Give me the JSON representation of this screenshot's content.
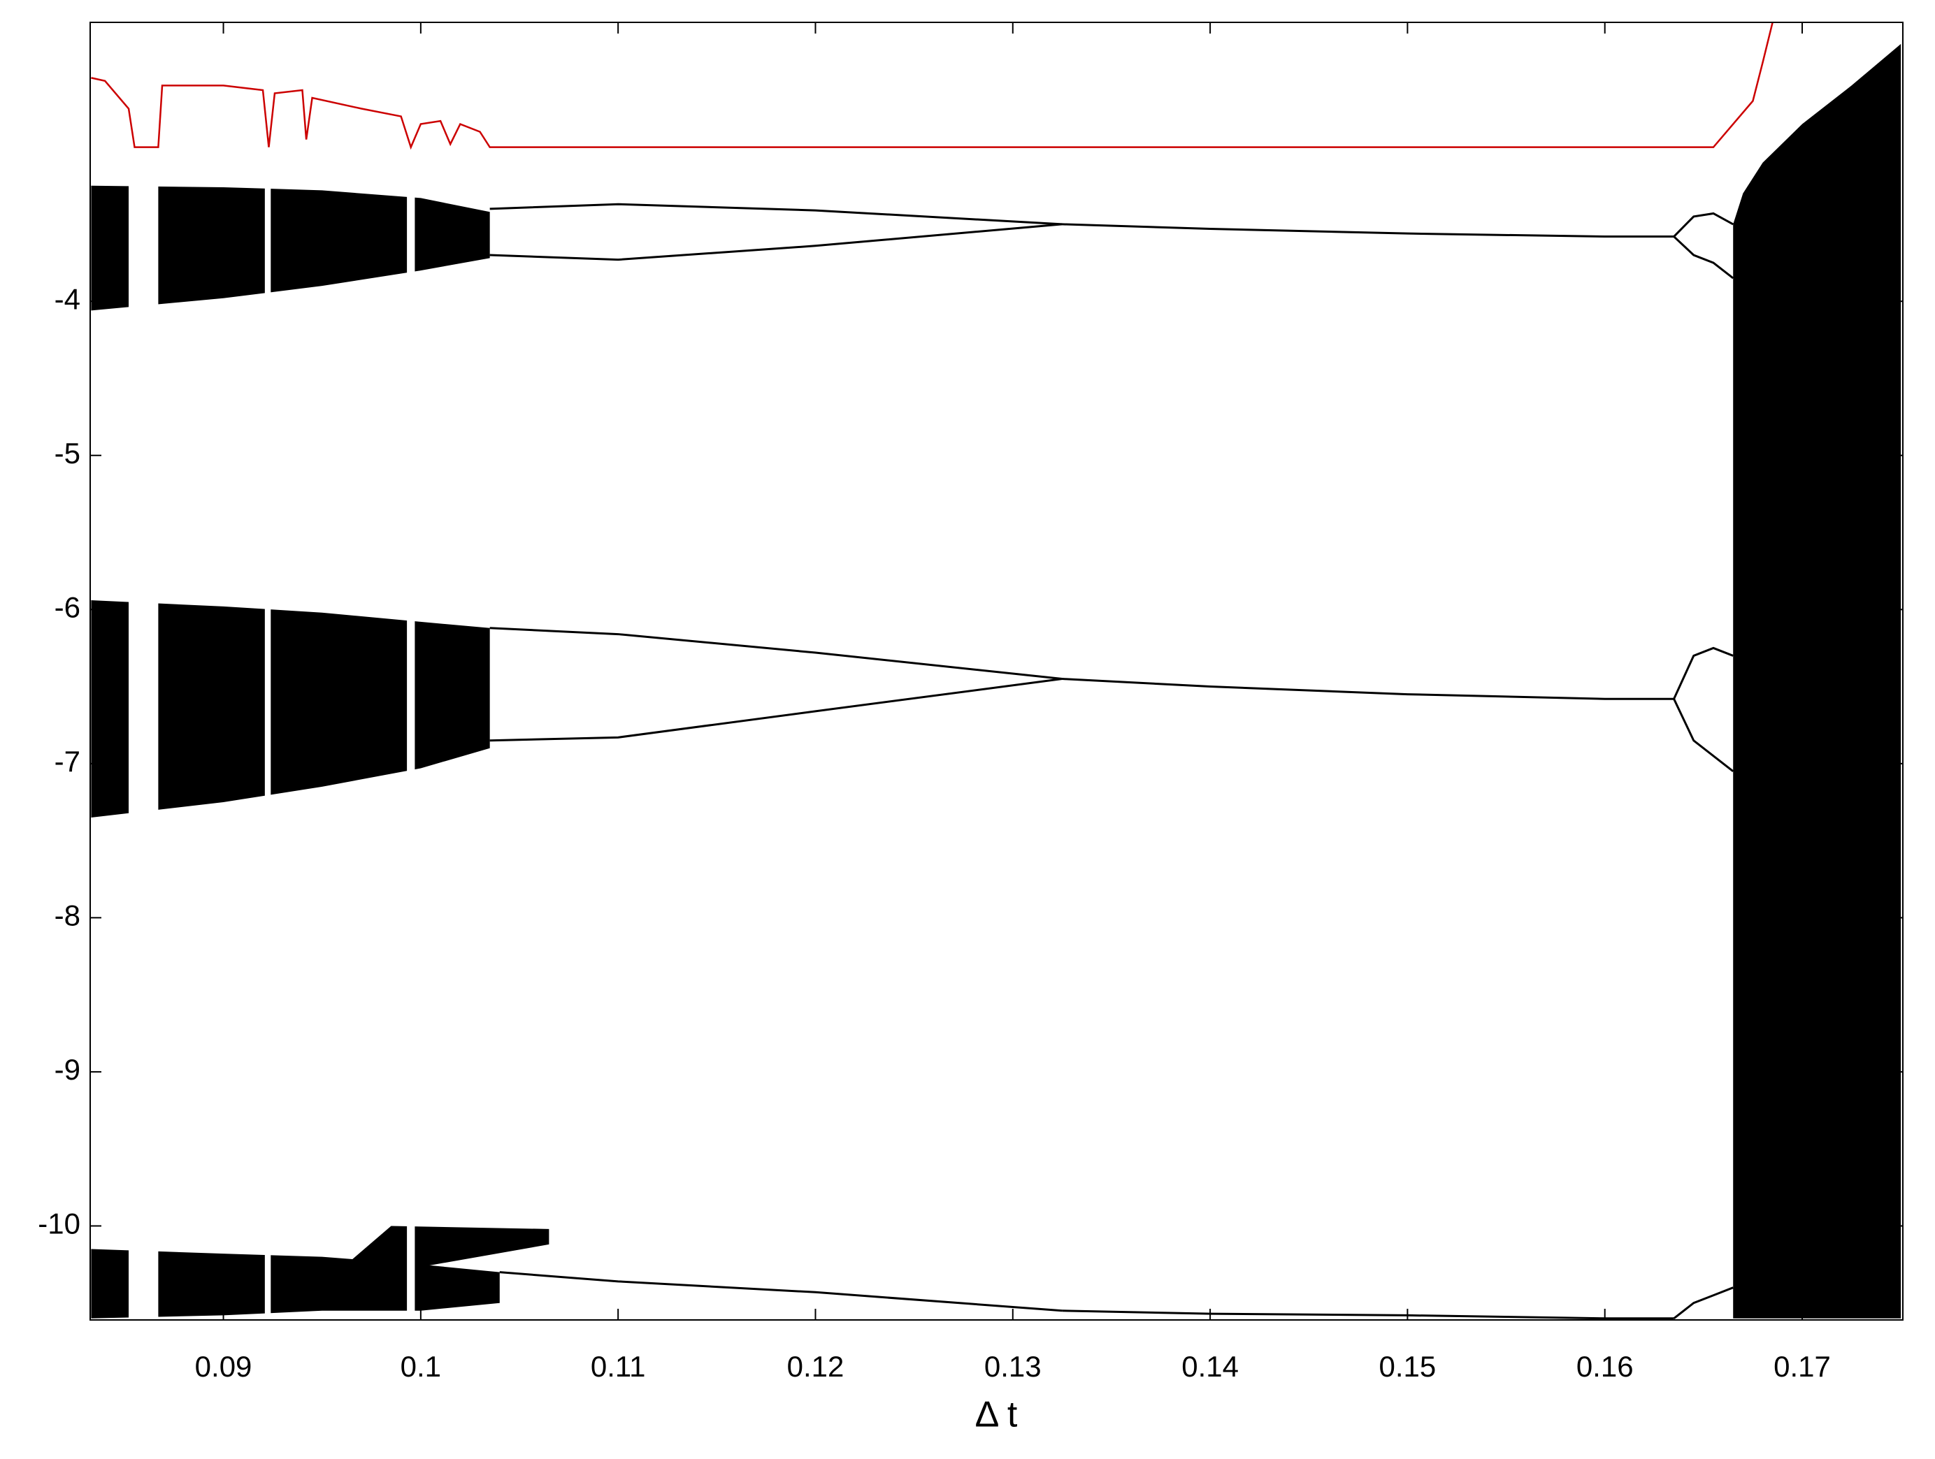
{
  "chart_data": {
    "type": "bifurcation",
    "xlabel": "Δ t",
    "color": "#000000",
    "xlim": [
      0.08325,
      0.1751
    ],
    "ylim": [
      -10.61,
      -2.19
    ],
    "xticks": [
      0.09,
      0.1,
      0.11,
      0.12,
      0.13,
      0.14,
      0.15,
      0.16,
      0.17
    ],
    "yticks": [
      -10,
      -9,
      -8,
      -7,
      -6,
      -5,
      -4
    ],
    "bands": [
      {
        "x": [
          0.0833,
          0.09,
          0.095,
          0.1,
          0.1035
        ],
        "upper": [
          -3.25,
          -3.26,
          -3.28,
          -3.33,
          -3.42
        ],
        "lower": [
          -4.06,
          -3.98,
          -3.9,
          -3.8,
          -3.72
        ]
      },
      {
        "x": [
          0.0833,
          0.09,
          0.095,
          0.1,
          0.1035
        ],
        "upper": [
          -5.94,
          -5.98,
          -6.02,
          -6.08,
          -6.12
        ],
        "lower": [
          -7.35,
          -7.25,
          -7.15,
          -7.03,
          -6.9
        ]
      },
      {
        "x": [
          0.0833,
          0.09,
          0.095,
          0.1,
          0.104
        ],
        "upper": [
          -10.15,
          -10.18,
          -10.2,
          -10.25,
          -10.3
        ],
        "lower": [
          -10.6,
          -10.58,
          -10.55,
          -10.55,
          -10.5
        ]
      },
      {
        "x": [
          0.0965,
          0.0985,
          0.1065
        ],
        "upper": [
          -10.22,
          -10.0,
          -10.02
        ],
        "lower": [
          -10.25,
          -10.3,
          -10.12
        ]
      },
      {
        "x": [
          0.1665,
          0.167,
          0.168,
          0.17,
          0.1725,
          0.175
        ],
        "upper": [
          -3.5,
          -3.3,
          -3.1,
          -2.85,
          -2.6,
          -2.33
        ],
        "lower": [
          -10.6,
          -10.6,
          -10.6,
          -10.6,
          -10.6,
          -10.6
        ]
      }
    ],
    "windows": [
      {
        "x": [
          0.0852,
          0.0867
        ],
        "y": [
          -10.62,
          -3.2
        ]
      },
      {
        "x": [
          0.0921,
          0.0924
        ],
        "y": [
          -10.62,
          -3.2
        ]
      },
      {
        "x": [
          0.0993,
          0.0997
        ],
        "y": [
          -10.62,
          -3.2
        ]
      }
    ],
    "branches": [
      {
        "x": [
          0.1035,
          0.11,
          0.12,
          0.1325
        ],
        "y": [
          -3.4,
          -3.37,
          -3.41,
          -3.5
        ]
      },
      {
        "x": [
          0.1035,
          0.11,
          0.12,
          0.1325
        ],
        "y": [
          -3.7,
          -3.73,
          -3.64,
          -3.5
        ]
      },
      {
        "x": [
          0.1325,
          0.14,
          0.15,
          0.16,
          0.1635
        ],
        "y": [
          -3.5,
          -3.53,
          -3.56,
          -3.58,
          -3.58
        ]
      },
      {
        "x": [
          0.1635,
          0.1645,
          0.1655,
          0.1665
        ],
        "y": [
          -3.58,
          -3.45,
          -3.43,
          -3.5
        ]
      },
      {
        "x": [
          0.1635,
          0.1645,
          0.1655,
          0.1665
        ],
        "y": [
          -3.58,
          -3.7,
          -3.75,
          -3.85
        ]
      },
      {
        "x": [
          0.1035,
          0.11,
          0.12,
          0.1325
        ],
        "y": [
          -6.12,
          -6.16,
          -6.28,
          -6.45
        ]
      },
      {
        "x": [
          0.1035,
          0.11,
          0.12,
          0.1325
        ],
        "y": [
          -6.85,
          -6.83,
          -6.66,
          -6.45
        ]
      },
      {
        "x": [
          0.1325,
          0.14,
          0.15,
          0.16,
          0.1635
        ],
        "y": [
          -6.45,
          -6.5,
          -6.55,
          -6.58,
          -6.58
        ]
      },
      {
        "x": [
          0.1635,
          0.1645,
          0.1655,
          0.1665
        ],
        "y": [
          -6.58,
          -6.3,
          -6.25,
          -6.3
        ]
      },
      {
        "x": [
          0.1635,
          0.1645,
          0.1655,
          0.1665
        ],
        "y": [
          -6.58,
          -6.85,
          -6.95,
          -7.05
        ]
      },
      {
        "x": [
          0.104,
          0.11,
          0.12,
          0.1325
        ],
        "y": [
          -10.3,
          -10.36,
          -10.43,
          -10.55
        ]
      },
      {
        "x": [
          0.1325,
          0.14,
          0.15,
          0.16,
          0.1635
        ],
        "y": [
          -10.55,
          -10.57,
          -10.58,
          -10.6,
          -10.6
        ]
      },
      {
        "x": [
          0.1635,
          0.1645,
          0.1655,
          0.1665
        ],
        "y": [
          -10.6,
          -10.5,
          -10.45,
          -10.4
        ]
      }
    ],
    "lyapunov": {
      "color": "#cc0000",
      "x": [
        0.0833,
        0.084,
        0.0852,
        0.0855,
        0.0867,
        0.0869,
        0.09,
        0.092,
        0.0923,
        0.0926,
        0.094,
        0.0942,
        0.0945,
        0.097,
        0.099,
        0.0995,
        0.1,
        0.101,
        0.1015,
        0.102,
        0.103,
        0.1035,
        0.1655,
        0.1675,
        0.168,
        0.1685
      ],
      "y": [
        -2.55,
        -2.57,
        -2.75,
        -3.0,
        -3.0,
        -2.6,
        -2.6,
        -2.63,
        -3.0,
        -2.65,
        -2.63,
        -2.95,
        -2.68,
        -2.75,
        -2.8,
        -3.0,
        -2.85,
        -2.83,
        -2.98,
        -2.85,
        -2.9,
        -3.0,
        -3.0,
        -2.7,
        -2.45,
        -2.19
      ]
    }
  }
}
